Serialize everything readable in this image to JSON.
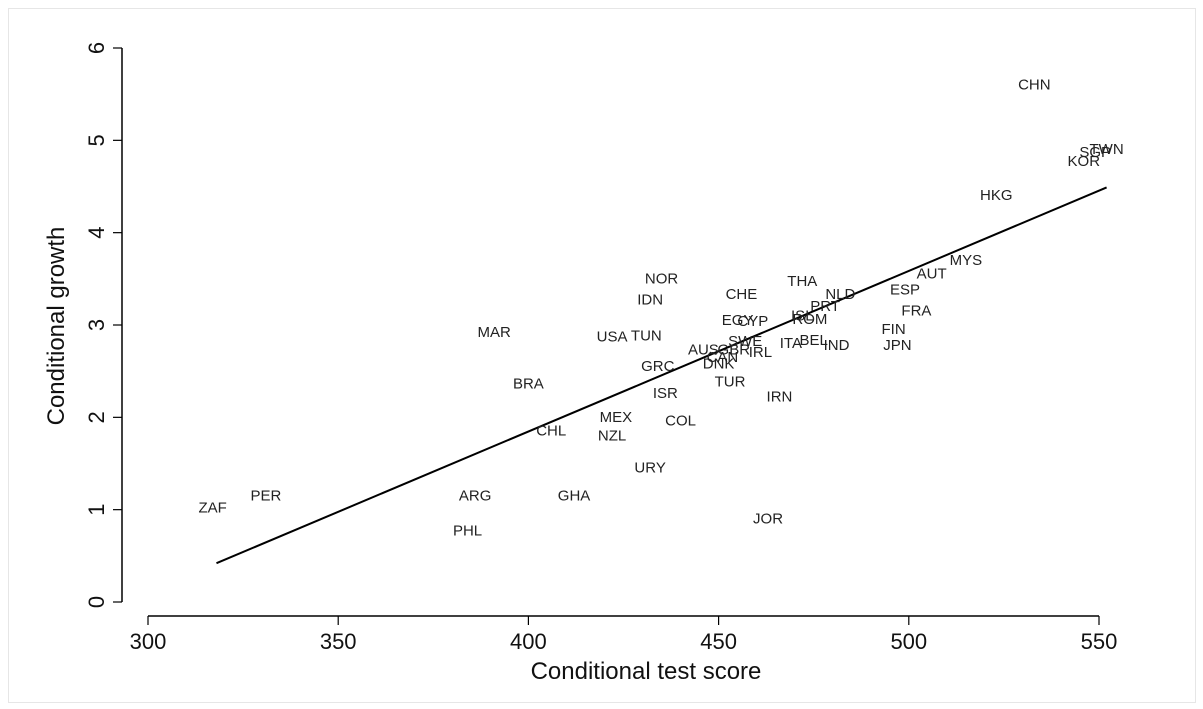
{
  "chart_data": {
    "type": "scatter",
    "xlabel": "Conditional test score",
    "ylabel": "Conditional growth",
    "xlim": [
      295,
      575
    ],
    "ylim": [
      -0.1,
      6.2
    ],
    "xticks": [
      300,
      350,
      400,
      450,
      500,
      550
    ],
    "yticks": [
      0,
      1,
      2,
      3,
      4,
      5,
      6
    ],
    "grid": false,
    "points": [
      {
        "label": "CHN",
        "x": 533,
        "y": 5.6
      },
      {
        "label": "TWN",
        "x": 552,
        "y": 4.9
      },
      {
        "label": "SGP",
        "x": 549,
        "y": 4.87
      },
      {
        "label": "KOR",
        "x": 546,
        "y": 4.77
      },
      {
        "label": "HKG",
        "x": 523,
        "y": 4.4
      },
      {
        "label": "MYS",
        "x": 515,
        "y": 3.7
      },
      {
        "label": "AUT",
        "x": 506,
        "y": 3.55
      },
      {
        "label": "ESP",
        "x": 499,
        "y": 3.38
      },
      {
        "label": "FRA",
        "x": 502,
        "y": 3.15
      },
      {
        "label": "FIN",
        "x": 496,
        "y": 2.95
      },
      {
        "label": "JPN",
        "x": 497,
        "y": 2.78
      },
      {
        "label": "THA",
        "x": 472,
        "y": 3.47
      },
      {
        "label": "NLD",
        "x": 482,
        "y": 3.33
      },
      {
        "label": "PRT",
        "x": 478,
        "y": 3.2
      },
      {
        "label": "ISL",
        "x": 472,
        "y": 3.1
      },
      {
        "label": "ROM",
        "x": 474,
        "y": 3.06
      },
      {
        "label": "CHE",
        "x": 456,
        "y": 3.33
      },
      {
        "label": "EGY",
        "x": 455,
        "y": 3.05
      },
      {
        "label": "CYP",
        "x": 459,
        "y": 3.04
      },
      {
        "label": "NOR",
        "x": 435,
        "y": 3.5
      },
      {
        "label": "IDN",
        "x": 432,
        "y": 3.27
      },
      {
        "label": "USA",
        "x": 422,
        "y": 2.87
      },
      {
        "label": "TUN",
        "x": 431,
        "y": 2.88
      },
      {
        "label": "MAR",
        "x": 391,
        "y": 2.92
      },
      {
        "label": "SWE",
        "x": 457,
        "y": 2.82
      },
      {
        "label": "ITA",
        "x": 469,
        "y": 2.8
      },
      {
        "label": "BEL",
        "x": 475,
        "y": 2.83
      },
      {
        "label": "IND",
        "x": 481,
        "y": 2.78
      },
      {
        "label": "AUS",
        "x": 446,
        "y": 2.73
      },
      {
        "label": "GBR",
        "x": 454,
        "y": 2.73
      },
      {
        "label": "CAN",
        "x": 451,
        "y": 2.65
      },
      {
        "label": "IRL",
        "x": 461,
        "y": 2.7
      },
      {
        "label": "DNK",
        "x": 450,
        "y": 2.58
      },
      {
        "label": "GRC",
        "x": 434,
        "y": 2.55
      },
      {
        "label": "BRA",
        "x": 400,
        "y": 2.36
      },
      {
        "label": "ISR",
        "x": 436,
        "y": 2.26
      },
      {
        "label": "TUR",
        "x": 453,
        "y": 2.38
      },
      {
        "label": "IRN",
        "x": 466,
        "y": 2.22
      },
      {
        "label": "MEX",
        "x": 423,
        "y": 2.0
      },
      {
        "label": "COL",
        "x": 440,
        "y": 1.96
      },
      {
        "label": "CHL",
        "x": 406,
        "y": 1.85
      },
      {
        "label": "NZL",
        "x": 422,
        "y": 1.8
      },
      {
        "label": "URY",
        "x": 432,
        "y": 1.45
      },
      {
        "label": "ARG",
        "x": 386,
        "y": 1.15
      },
      {
        "label": "GHA",
        "x": 412,
        "y": 1.15
      },
      {
        "label": "PER",
        "x": 331,
        "y": 1.15
      },
      {
        "label": "ZAF",
        "x": 317,
        "y": 1.02
      },
      {
        "label": "PHL",
        "x": 384,
        "y": 0.77
      },
      {
        "label": "JOR",
        "x": 463,
        "y": 0.9
      }
    ],
    "fit_line": {
      "x": [
        318,
        552
      ],
      "y": [
        0.42,
        4.49
      ]
    }
  }
}
